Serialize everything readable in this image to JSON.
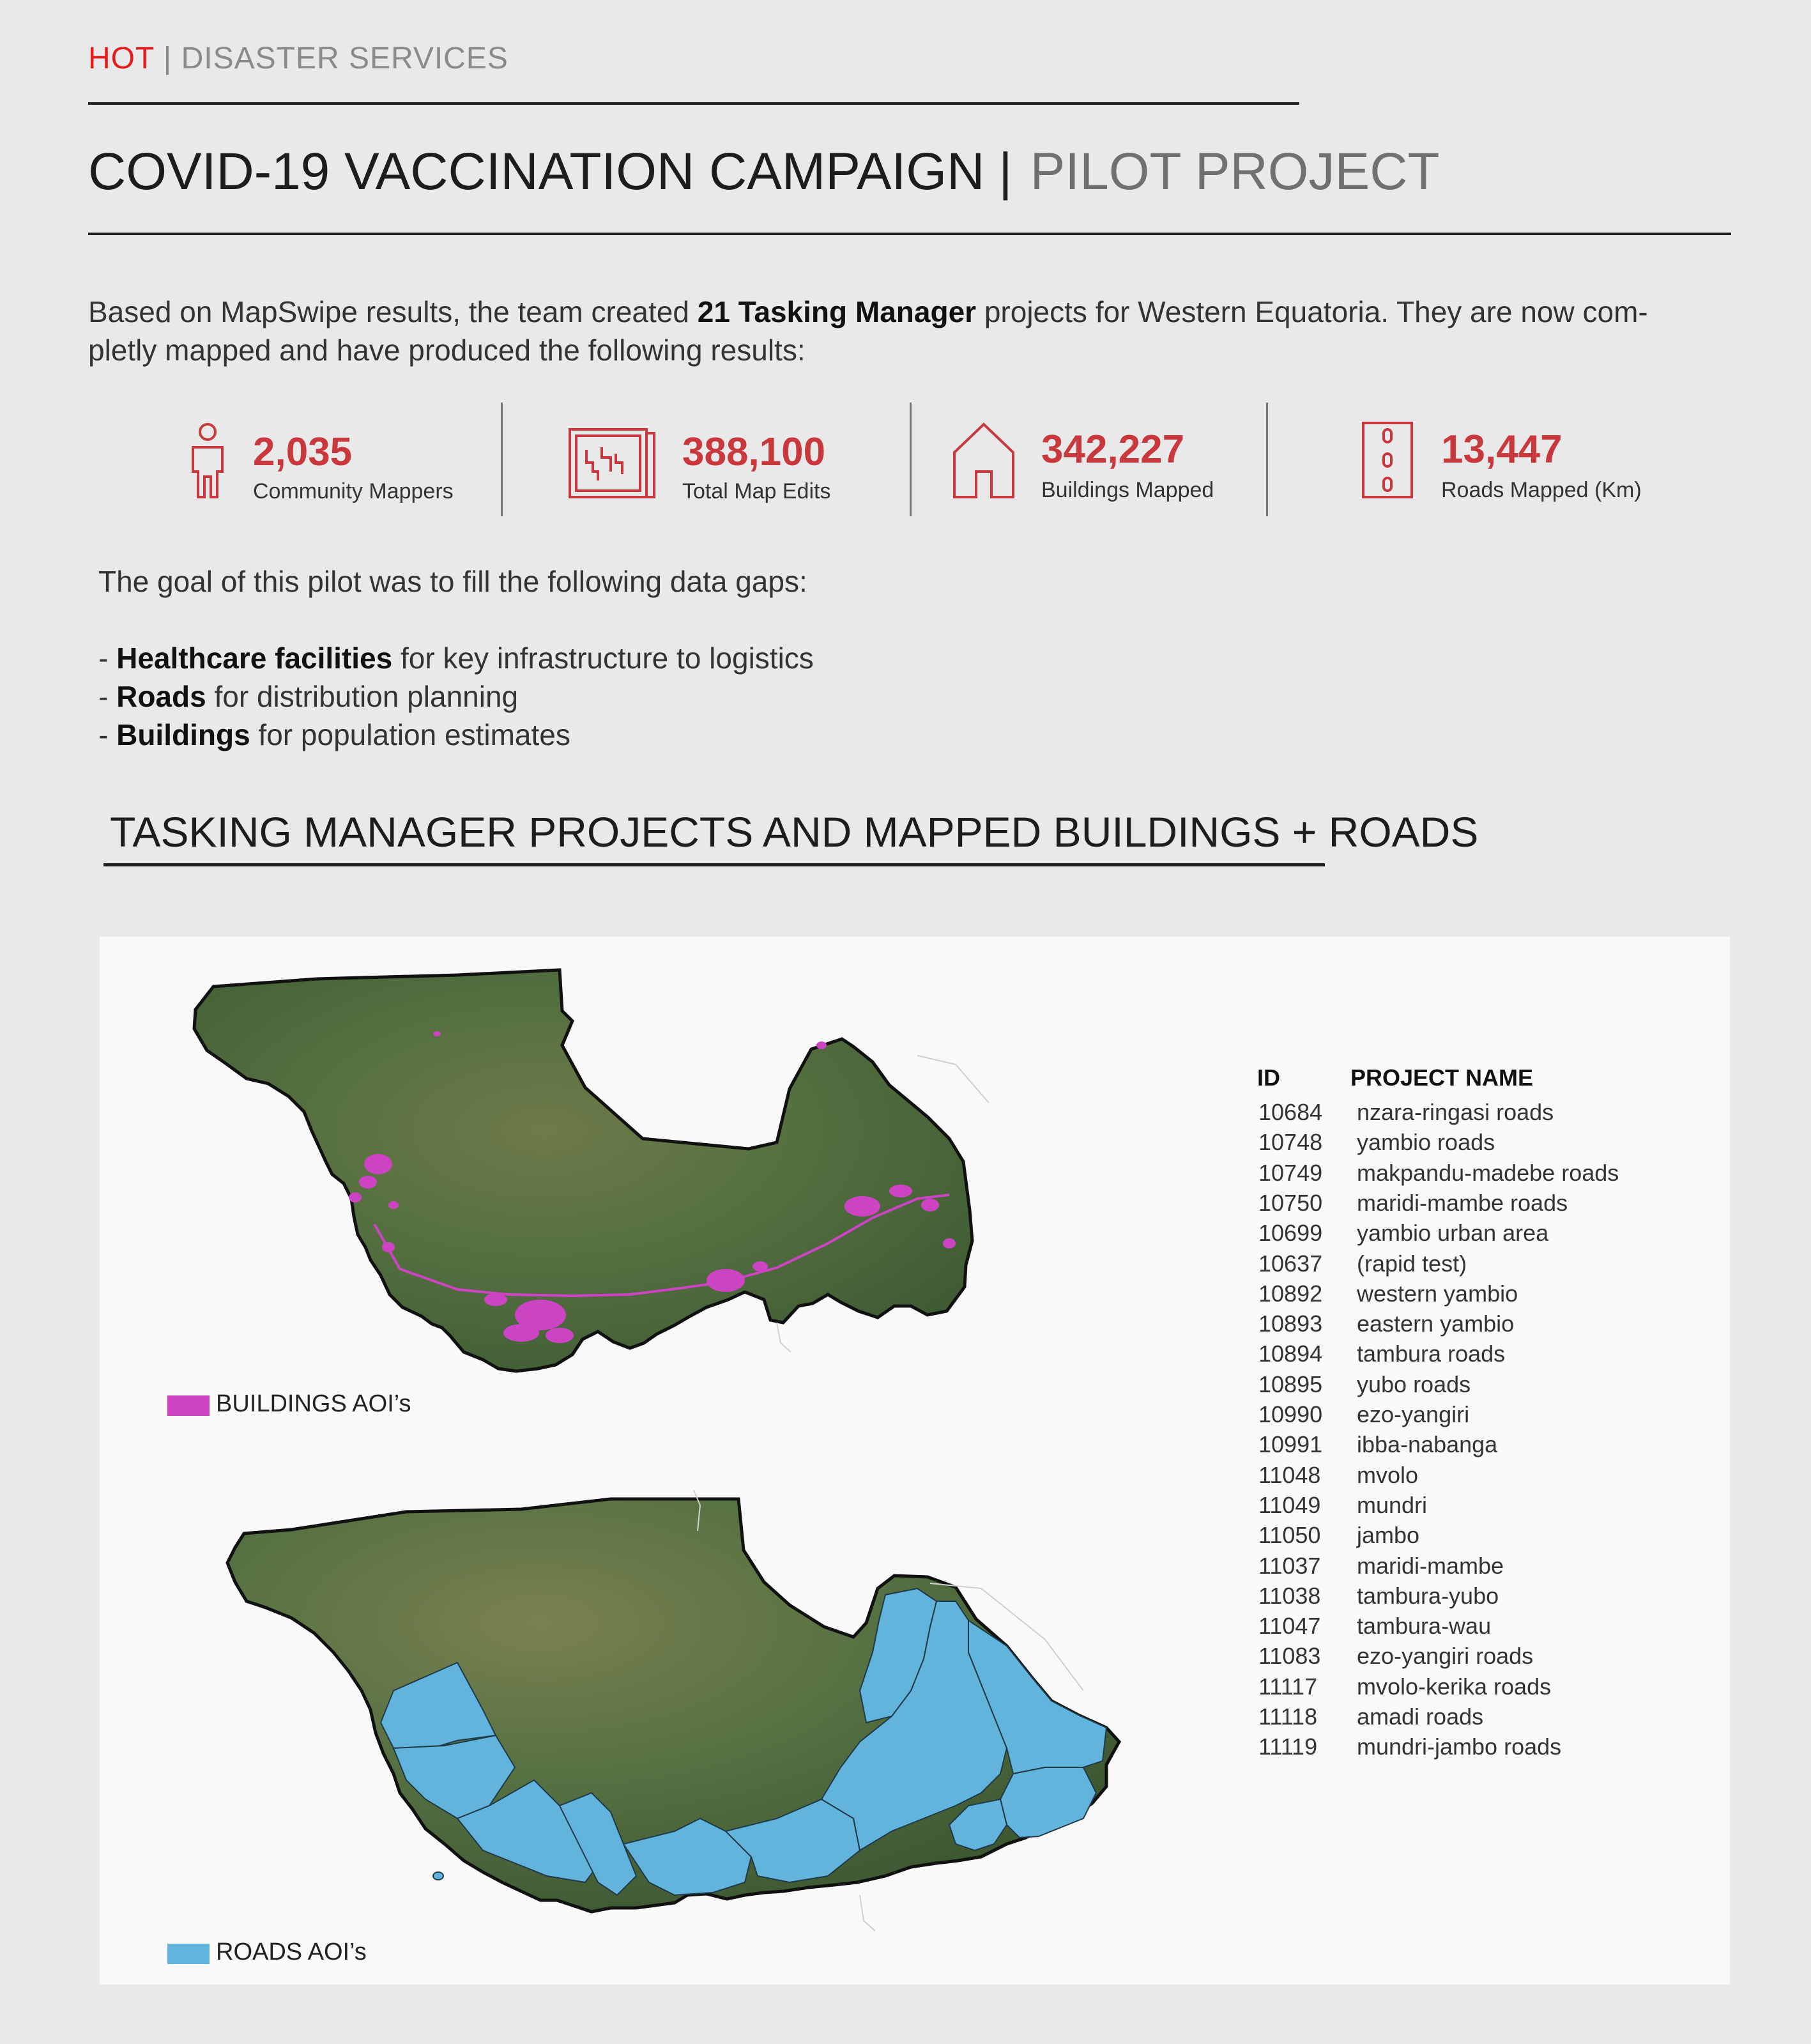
{
  "brand": {
    "hot": "HOT",
    "separator": "|",
    "section": "DISASTER SERVICES"
  },
  "title": {
    "main": "COVID-19 VACCINATION CAMPAIGN",
    "separator": "|",
    "sub": "PILOT PROJECT"
  },
  "intro": {
    "before": "Based on MapSwipe results, the team created ",
    "bold": "21 Tasking Manager",
    "after": " projects for Western Equatoria. They are now com-",
    "line2": "pletly mapped and have produced the following results:"
  },
  "stats": [
    {
      "value": "2,035",
      "label": "Community Mappers",
      "icon": "person-icon"
    },
    {
      "value": "388,100",
      "label": "Total Map Edits",
      "icon": "map-edit-icon"
    },
    {
      "value": "342,227",
      "label": "Buildings Mapped",
      "icon": "house-icon"
    },
    {
      "value": "13,447",
      "label": "Roads Mapped (Km)",
      "icon": "road-icon"
    }
  ],
  "goal": {
    "intro": "The goal of this pilot was to  fill the following data gaps:",
    "items": [
      {
        "prefix": "- ",
        "bold": "Healthcare facilities",
        "text": " for key infrastructure to logistics"
      },
      {
        "prefix": "- ",
        "bold": "Roads",
        "text": " for distribution planning"
      },
      {
        "prefix": "- ",
        "bold": "Buildings",
        "text": " for population estimates"
      }
    ]
  },
  "section_title": "TASKING MANAGER PROJECTS AND MAPPED BUILDINGS + ROADS",
  "legend": {
    "buildings": {
      "label": "BUILDINGS AOI’s",
      "color": "#cc44c4"
    },
    "roads": {
      "label": "ROADS AOI’s",
      "color": "#63b4dc"
    }
  },
  "table": {
    "headers": {
      "id": "ID",
      "name": "PROJECT NAME"
    },
    "rows": [
      {
        "id": "10684",
        "name": "nzara-ringasi roads"
      },
      {
        "id": "10748",
        "name": "yambio roads"
      },
      {
        "id": "10749",
        "name": "makpandu-madebe roads"
      },
      {
        "id": "10750",
        "name": "maridi-mambe roads"
      },
      {
        "id": "10699",
        "name": "yambio urban area"
      },
      {
        "id": "10637",
        "name": "(rapid test)"
      },
      {
        "id": "10892",
        "name": "western yambio"
      },
      {
        "id": "10893",
        "name": "eastern yambio"
      },
      {
        "id": "10894",
        "name": "tambura roads"
      },
      {
        "id": "10895",
        "name": "yubo roads"
      },
      {
        "id": "10990",
        "name": "ezo-yangiri"
      },
      {
        "id": "10991",
        "name": "ibba-nabanga"
      },
      {
        "id": "11048",
        "name": "mvolo"
      },
      {
        "id": "11049",
        "name": "mundri"
      },
      {
        "id": "11050",
        "name": "jambo"
      },
      {
        "id": "11037",
        "name": "maridi-mambe"
      },
      {
        "id": "11038",
        "name": "tambura-yubo"
      },
      {
        "id": "11047",
        "name": "tambura-wau"
      },
      {
        "id": "11083",
        "name": "ezo-yangiri roads"
      },
      {
        "id": "11117",
        "name": "mvolo-kerika roads"
      },
      {
        "id": "11118",
        "name": "amadi roads"
      },
      {
        "id": "11119",
        "name": "mundri-jambo roads"
      }
    ]
  },
  "colors": {
    "accent": "#c8383c",
    "brand_red": "#e31b1b",
    "terrain": "#4f6b3a"
  }
}
